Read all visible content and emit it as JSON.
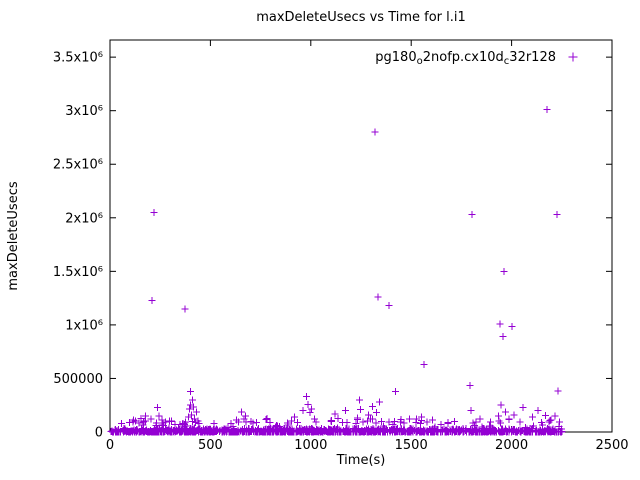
{
  "page": {
    "background": "#ffffff"
  },
  "chart_data": {
    "type": "scatter",
    "title": "maxDeleteUsecs vs Time for l.i1",
    "xlabel": "Time(s)",
    "ylabel": "maxDeleteUsecs",
    "xlim": [
      0,
      2500
    ],
    "ylim": [
      0,
      3660000
    ],
    "x_ticks": [
      0,
      500,
      1000,
      1500,
      2000,
      2500
    ],
    "y_ticks": [
      [
        0,
        "0"
      ],
      [
        500000,
        "500000"
      ],
      [
        1000000,
        "1x10⁶"
      ],
      [
        1500000,
        "1.5x10⁶"
      ],
      [
        2000000,
        "2x10⁶"
      ],
      [
        2500000,
        "2.5x10⁶"
      ],
      [
        3000000,
        "3x10⁶"
      ],
      [
        3500000,
        "3.5x10⁶"
      ]
    ],
    "grid": false,
    "legend": {
      "position": "top-right-inside",
      "label_plain": "pg180_o2nofp.cx10d_c32r128",
      "parts": [
        {
          "text": "pg180"
        },
        {
          "text": "o",
          "sub": true
        },
        {
          "text": "2nofp.cx10d"
        },
        {
          "text": "c",
          "sub": true
        },
        {
          "text": "32r128"
        }
      ]
    },
    "marker": {
      "shape": "plus",
      "color": "#9400d3",
      "size": 7
    },
    "points": [
      [
        219,
        2050000
      ],
      [
        209,
        1230000
      ],
      [
        374,
        1148000
      ],
      [
        1320,
        2800000
      ],
      [
        2176,
        3010000
      ],
      [
        1803,
        2030000
      ],
      [
        2226,
        2030000
      ],
      [
        1334,
        1260000
      ],
      [
        1389,
        1180000
      ],
      [
        1962,
        1500000
      ],
      [
        1942,
        1010000
      ],
      [
        2002,
        985000
      ],
      [
        1957,
        893000
      ],
      [
        1564,
        630000
      ],
      [
        1792,
        435000
      ],
      [
        2231,
        385000
      ],
      [
        1421,
        378000
      ],
      [
        402,
        380000
      ],
      [
        978,
        330000
      ],
      [
        1243,
        300000
      ],
      [
        1341,
        282000
      ],
      [
        168,
        95000
      ],
      [
        178,
        148000
      ],
      [
        205,
        120000
      ],
      [
        236,
        230000
      ],
      [
        243,
        150000
      ],
      [
        258,
        110000
      ],
      [
        265,
        85000
      ],
      [
        391,
        140000
      ],
      [
        396,
        215000
      ],
      [
        401,
        250000
      ],
      [
        406,
        160000
      ],
      [
        411,
        300000
      ],
      [
        416,
        235000
      ],
      [
        421,
        120000
      ],
      [
        426,
        90000
      ],
      [
        431,
        185000
      ],
      [
        438,
        105000
      ],
      [
        444,
        80000
      ],
      [
        641,
        95000
      ],
      [
        655,
        185000
      ],
      [
        668,
        120000
      ],
      [
        676,
        150000
      ],
      [
        702,
        100000
      ],
      [
        712,
        85000
      ],
      [
        781,
        125000
      ],
      [
        796,
        90000
      ],
      [
        903,
        105000
      ],
      [
        918,
        140000
      ],
      [
        934,
        90000
      ],
      [
        962,
        200000
      ],
      [
        985,
        255000
      ],
      [
        996,
        180000
      ],
      [
        1004,
        215000
      ],
      [
        1018,
        120000
      ],
      [
        1027,
        95000
      ],
      [
        1104,
        100000
      ],
      [
        1121,
        170000
      ],
      [
        1136,
        125000
      ],
      [
        1158,
        90000
      ],
      [
        1173,
        200000
      ],
      [
        1232,
        130000
      ],
      [
        1247,
        210000
      ],
      [
        1261,
        95000
      ],
      [
        1288,
        160000
      ],
      [
        1297,
        120000
      ],
      [
        1308,
        240000
      ],
      [
        1327,
        180000
      ],
      [
        1352,
        100000
      ],
      [
        1447,
        95000
      ],
      [
        1492,
        120000
      ],
      [
        1524,
        90000
      ],
      [
        1551,
        140000
      ],
      [
        1607,
        110000
      ],
      [
        1683,
        90000
      ],
      [
        1716,
        100000
      ],
      [
        1798,
        200000
      ],
      [
        1822,
        95000
      ],
      [
        1843,
        120000
      ],
      [
        1936,
        150000
      ],
      [
        1948,
        250000
      ],
      [
        1969,
        185000
      ],
      [
        1988,
        120000
      ],
      [
        2011,
        160000
      ],
      [
        2042,
        95000
      ],
      [
        2056,
        230000
      ],
      [
        2103,
        140000
      ],
      [
        2131,
        200000
      ],
      [
        2149,
        90000
      ],
      [
        2168,
        155000
      ],
      [
        2197,
        110000
      ],
      [
        2216,
        150000
      ],
      [
        2238,
        95000
      ]
    ],
    "baseline_band": {
      "description": "dense band of samples hugging y=0 across the full time range",
      "seed": 1337,
      "count": 1300,
      "x_min": 4,
      "x_max": 2252,
      "y_typical_max": 34000,
      "y_skew": 2.6,
      "spike_fraction": 0.06,
      "spike_max": 125000
    }
  }
}
